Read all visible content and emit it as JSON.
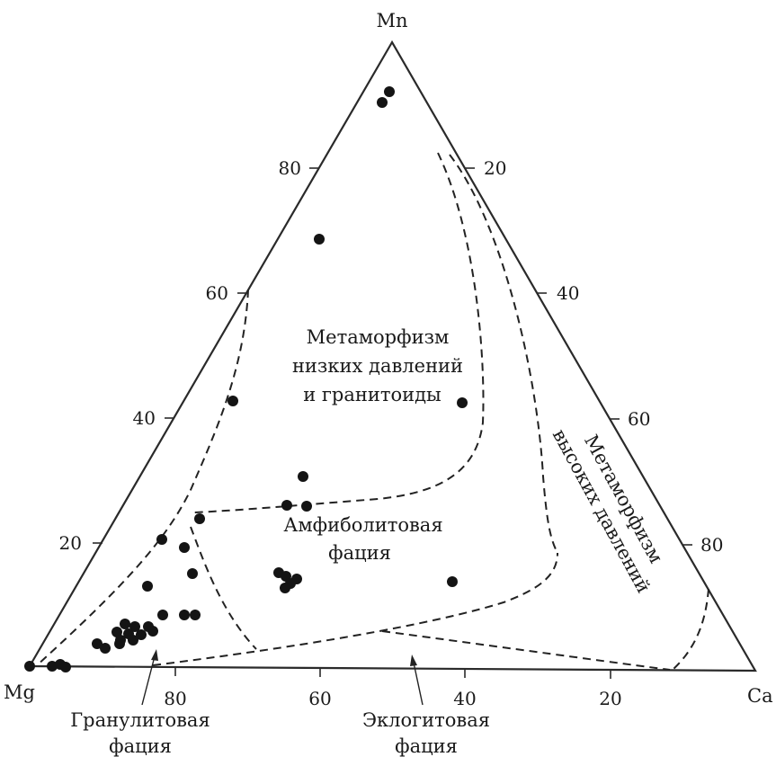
{
  "diagram": {
    "type": "ternary",
    "vertices": {
      "top": "Mn",
      "left": "Mg",
      "right": "Ca"
    },
    "left_edge_ticks": [
      "20",
      "40",
      "60",
      "80"
    ],
    "right_edge_ticks": [
      "20",
      "40",
      "60",
      "80"
    ],
    "bottom_edge_ticks": [
      "80",
      "60",
      "40",
      "20"
    ]
  },
  "regions": {
    "low_pressure": [
      "Метаморфизм",
      "низких давлений",
      "и гранитоиды"
    ],
    "amphibolite": [
      "Амфиболитовая",
      "фация"
    ],
    "high_pressure": [
      "Метаморфизм",
      "высоких давлений"
    ],
    "granulite": [
      "Гранулитовая",
      "фация"
    ],
    "eclogite": [
      "Эклогитовая",
      "фация"
    ]
  },
  "colors": {
    "ink": "#141414",
    "background": "#ffffff"
  }
}
